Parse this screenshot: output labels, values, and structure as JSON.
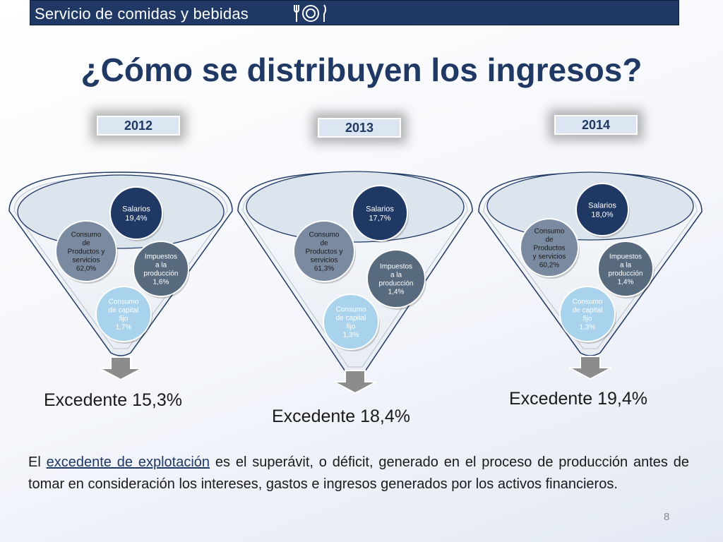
{
  "header": {
    "title": "Servicio de comidas y bebidas",
    "icon": "fork-plate-knife-icon"
  },
  "page_title": "¿Cómo se distribuyen los ingresos?",
  "colors": {
    "header_bg": "#1f3864",
    "salarios": "#1f3864",
    "consumo_productos": "#7a8aa0",
    "impuestos": "#576a7e",
    "consumo_capital": "#a9d3ec",
    "funnel_top": "#dce4ee",
    "arrow": "#8c8c8c"
  },
  "funnels": [
    {
      "year": "2012",
      "salarios": {
        "label": "Salarios",
        "value": "19,4%"
      },
      "consumo_productos": {
        "label": [
          "Consumo",
          "de",
          "Productos y",
          "servicios"
        ],
        "value": "62,0%"
      },
      "impuestos": {
        "label": [
          "Impuestos",
          "a la",
          "producción"
        ],
        "value": "1,6%"
      },
      "consumo_capital": {
        "label": [
          "Consumo",
          "de capital",
          "fijo"
        ],
        "value": "1,7%"
      },
      "excedente": "Excedente 15,3%"
    },
    {
      "year": "2013",
      "salarios": {
        "label": "Salarios",
        "value": "17,7%"
      },
      "consumo_productos": {
        "label": [
          "Consumo",
          "de",
          "Productos y",
          "servicios"
        ],
        "value": "61,3%"
      },
      "impuestos": {
        "label": [
          "Impuestos",
          "a la",
          "producción"
        ],
        "value": "1,4%"
      },
      "consumo_capital": {
        "label": [
          "Consumo",
          "de capital",
          "fijo"
        ],
        "value": "1,3%"
      },
      "excedente": "Excedente 18,4%"
    },
    {
      "year": "2014",
      "salarios": {
        "label": "Salarios",
        "value": "18,0%"
      },
      "consumo_productos": {
        "label": [
          "Consumo",
          "de",
          "Productos",
          "y servicios"
        ],
        "value": "60,2%"
      },
      "impuestos": {
        "label": [
          "Impuestos",
          "a la",
          "producción"
        ],
        "value": "1,4%"
      },
      "consumo_capital": {
        "label": [
          "Consumo",
          "de capital",
          "fijo"
        ],
        "value": "1,3%"
      },
      "excedente": "Excedente 19,4%"
    }
  ],
  "explanation": {
    "prefix": "El ",
    "term": "excedente de explotación",
    "rest": " es el superávit, o déficit, generado en el proceso de producción antes de tomar en consideración los intereses, gastos e ingresos generados por los activos financieros."
  },
  "page_number": "8"
}
